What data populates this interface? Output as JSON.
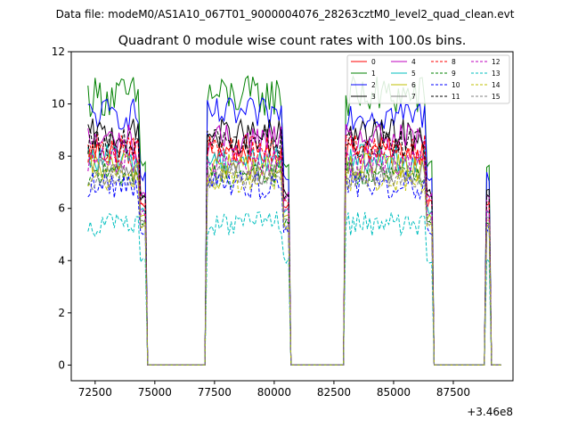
{
  "chart_data": {
    "type": "line",
    "suptitle": "Data file: modeM0/AS1A10_067T01_9000004076_28263cztM0_level2_quad_clean.evt",
    "title": "Quadrant 0 module wise count rates with 100.0s bins.",
    "xlabel": "",
    "ylabel": "",
    "x_offset_label": "+3.46e8",
    "xlim": [
      71500,
      90000
    ],
    "ylim": [
      -0.6,
      12
    ],
    "xticks": [
      72500,
      75000,
      77500,
      80000,
      82500,
      85000,
      87500
    ],
    "xtick_labels": [
      "72500",
      "75000",
      "77500",
      "80000",
      "82500",
      "85000",
      "87500"
    ],
    "yticks": [
      0,
      2,
      4,
      6,
      8,
      10,
      12
    ],
    "ytick_labels": [
      "0",
      "2",
      "4",
      "6",
      "8",
      "10",
      "12"
    ],
    "legend_position": "top-right",
    "segments": [
      [
        72200,
        74600
      ],
      [
        77200,
        80600
      ],
      [
        83000,
        86600
      ],
      [
        88900,
        89000
      ]
    ],
    "gap_level": 0.0,
    "series": [
      {
        "name": "0",
        "color": "#ff0000",
        "dash": "solid",
        "level": 8.2,
        "wiggle": 0.35
      },
      {
        "name": "1",
        "color": "#008000",
        "dash": "solid",
        "level": 10.3,
        "wiggle": 0.5
      },
      {
        "name": "2",
        "color": "#0000ff",
        "dash": "solid",
        "level": 9.6,
        "wiggle": 0.4
      },
      {
        "name": "3",
        "color": "#000000",
        "dash": "solid",
        "level": 8.8,
        "wiggle": 0.4
      },
      {
        "name": "4",
        "color": "#bf00bf",
        "dash": "solid",
        "level": 8.6,
        "wiggle": 0.4
      },
      {
        "name": "5",
        "color": "#00bfbf",
        "dash": "solid",
        "level": 7.9,
        "wiggle": 0.35
      },
      {
        "name": "6",
        "color": "#bfbf00",
        "dash": "solid",
        "level": 7.6,
        "wiggle": 0.35
      },
      {
        "name": "7",
        "color": "#808080",
        "dash": "solid",
        "level": 7.4,
        "wiggle": 0.3
      },
      {
        "name": "8",
        "color": "#ff0000",
        "dash": "dashed",
        "level": 8.3,
        "wiggle": 0.35
      },
      {
        "name": "9",
        "color": "#008000",
        "dash": "dashed",
        "level": 7.3,
        "wiggle": 0.3
      },
      {
        "name": "10",
        "color": "#0000ff",
        "dash": "dashed",
        "level": 6.9,
        "wiggle": 0.35
      },
      {
        "name": "11",
        "color": "#000000",
        "dash": "dashed",
        "level": 8.5,
        "wiggle": 0.35
      },
      {
        "name": "12",
        "color": "#bf00bf",
        "dash": "dashed",
        "level": 7.8,
        "wiggle": 0.35
      },
      {
        "name": "13",
        "color": "#00bfbf",
        "dash": "dashed",
        "level": 5.4,
        "wiggle": 0.3
      },
      {
        "name": "14",
        "color": "#bfbf00",
        "dash": "dashed",
        "level": 7.1,
        "wiggle": 0.3
      },
      {
        "name": "15",
        "color": "#808080",
        "dash": "dashed",
        "level": 7.2,
        "wiggle": 0.3
      }
    ]
  }
}
